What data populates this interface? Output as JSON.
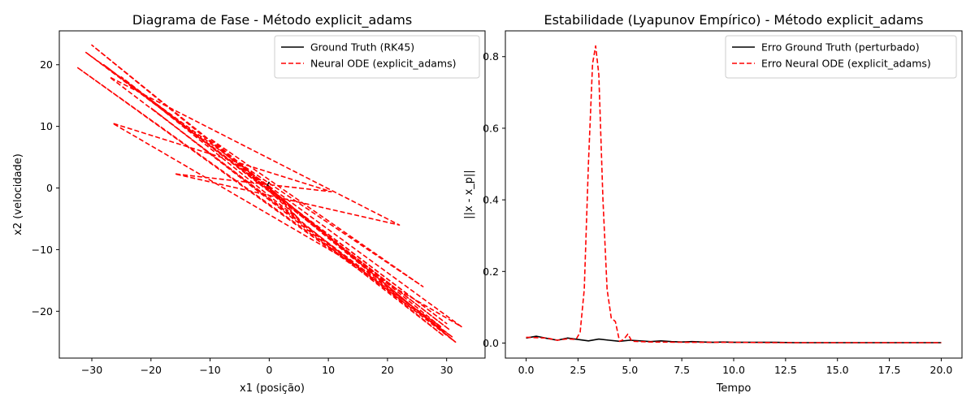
{
  "colors": {
    "ground_truth": "#000000",
    "neural": "#ff0000",
    "frame": "#000000",
    "legend_border": "#cccccc"
  },
  "chart_data": [
    {
      "type": "line",
      "title": "Diagrama de Fase - Método explicit_adams",
      "xlabel": "x1 (posição)",
      "ylabel": "x2 (velocidade)",
      "xlim": [
        -35.5,
        36.5
      ],
      "ylim": [
        -27.6,
        25.5
      ],
      "xticks": [
        -30,
        -20,
        -10,
        0,
        10,
        20,
        30
      ],
      "yticks": [
        -20,
        -10,
        0,
        10,
        20
      ],
      "xtick_labels": [
        "−30",
        "−20",
        "−10",
        "0",
        "10",
        "20",
        "30"
      ],
      "ytick_labels": [
        "−20",
        "−10",
        "0",
        "10",
        "20"
      ],
      "grid": false,
      "legend_position": "upper right",
      "legend": [
        "Ground Truth (RK45)",
        "Neural ODE (explicit_adams)"
      ],
      "series": [
        {
          "name": "Ground Truth (RK45)",
          "style": "solid",
          "color": "#000000",
          "x": [
            0.0,
            -0.4,
            0.3,
            -0.2,
            0.2,
            0.0
          ],
          "y": [
            1.0,
            0.3,
            -0.2,
            0.4,
            0.0,
            0.2
          ]
        },
        {
          "name": "Neural ODE (explicit_adams)",
          "style": "dashed",
          "color": "#ff0000",
          "x": [
            0.0,
            31.5,
            -30.0,
            29.0,
            -32.5,
            31.0,
            -27.0,
            22.0,
            -16.0,
            10.5,
            -26.5,
            32.5,
            -31.0,
            30.0,
            -28.0,
            30.5,
            -25.0,
            29.5,
            -20.0,
            31.5,
            -10.0,
            26.0,
            -5.0,
            5.0,
            0.0
          ],
          "y": [
            0.0,
            -25.0,
            23.2,
            -22.5,
            19.6,
            -24.2,
            18.0,
            -6.0,
            2.3,
            -0.6,
            10.5,
            -22.5,
            22.0,
            -22.0,
            20.0,
            -23.0,
            18.0,
            -24.0,
            13.0,
            -25.0,
            8.0,
            -16.0,
            4.0,
            -5.0,
            0.0
          ]
        }
      ]
    },
    {
      "type": "line",
      "title": "Estabilidade (Lyapunov Empírico) - Método explicit_adams",
      "xlabel": "Tempo",
      "ylabel": "||x - x_p||",
      "xlim": [
        -1.0,
        21.0
      ],
      "ylim": [
        -0.042,
        0.872
      ],
      "xticks": [
        0.0,
        2.5,
        5.0,
        7.5,
        10.0,
        12.5,
        15.0,
        17.5,
        20.0
      ],
      "yticks": [
        0.0,
        0.2,
        0.4,
        0.6,
        0.8
      ],
      "xtick_labels": [
        "0.0",
        "2.5",
        "5.0",
        "7.5",
        "10.0",
        "12.5",
        "15.0",
        "17.5",
        "20.0"
      ],
      "ytick_labels": [
        "0.0",
        "0.2",
        "0.4",
        "0.6",
        "0.8"
      ],
      "grid": false,
      "legend_position": "upper right",
      "legend": [
        "Erro Ground Truth (perturbado)",
        "Erro Neural ODE (explicit_adams)"
      ],
      "series": [
        {
          "name": "Erro Ground Truth (perturbado)",
          "style": "solid",
          "color": "#000000",
          "x": [
            0.0,
            0.5,
            1.0,
            1.5,
            2.0,
            2.5,
            3.0,
            3.5,
            4.0,
            4.5,
            5.0,
            5.5,
            6.0,
            6.5,
            7.0,
            7.5,
            8.0,
            8.5,
            9.0,
            9.5,
            10.0,
            11.0,
            12.0,
            13.0,
            14.0,
            15.0,
            16.0,
            17.0,
            18.0,
            19.0,
            20.0
          ],
          "y": [
            0.014,
            0.019,
            0.013,
            0.008,
            0.014,
            0.01,
            0.006,
            0.011,
            0.008,
            0.005,
            0.008,
            0.006,
            0.004,
            0.006,
            0.004,
            0.003,
            0.004,
            0.003,
            0.002,
            0.003,
            0.002,
            0.002,
            0.002,
            0.001,
            0.001,
            0.001,
            0.001,
            0.001,
            0.001,
            0.001,
            0.001
          ]
        },
        {
          "name": "Erro Neural ODE (explicit_adams)",
          "style": "dashed",
          "color": "#ff0000",
          "x": [
            0.0,
            1.0,
            1.5,
            2.0,
            2.4,
            2.6,
            2.8,
            3.0,
            3.2,
            3.35,
            3.5,
            3.7,
            3.9,
            4.1,
            4.3,
            4.5,
            4.7,
            4.9,
            5.1,
            5.5,
            6.0,
            8.0,
            10.0,
            12.0,
            15.0,
            18.0,
            20.0
          ],
          "y": [
            0.016,
            0.014,
            0.008,
            0.012,
            0.01,
            0.03,
            0.15,
            0.5,
            0.78,
            0.83,
            0.75,
            0.4,
            0.15,
            0.07,
            0.06,
            0.005,
            0.01,
            0.025,
            0.005,
            0.004,
            0.003,
            0.002,
            0.002,
            0.001,
            0.001,
            0.001,
            0.001
          ]
        }
      ]
    }
  ]
}
